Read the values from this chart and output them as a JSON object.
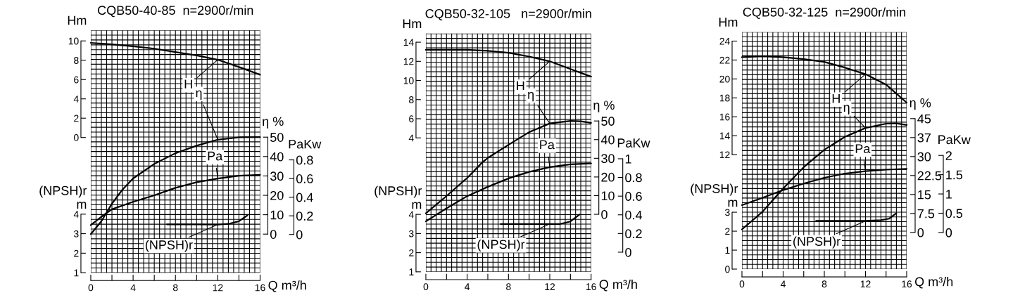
{
  "chart_data": [
    {
      "type": "line",
      "title": "CQB50-40-85  n=2900r/min",
      "ylabel": "Hm",
      "y2label": "η %",
      "y3label": "PaKw",
      "grid": true,
      "tick_labels": "y",
      "xlim": [
        0,
        16
      ],
      "ylim": [
        -14.0,
        11.1
      ],
      "yticks": [
        0,
        2,
        4,
        6,
        8,
        10
      ],
      "y2lim": [
        -19.9,
        105.1
      ],
      "y2ticks": [
        0,
        10,
        20,
        30,
        40,
        50
      ],
      "y3lim": [
        -0.41,
        2.19
      ],
      "y3ticks": [
        0,
        0.2,
        0.4,
        0.6,
        0.8
      ],
      "series": [
        {
          "name": "H",
          "color": "#000000",
          "x": [
            0,
            2,
            4,
            6,
            8,
            10,
            12,
            14,
            16
          ],
          "values": [
            9.8,
            9.65,
            9.45,
            9.2,
            8.85,
            8.5,
            8.05,
            7.3,
            6.5
          ]
        },
        {
          "name": "η",
          "axis": "y2",
          "color": "#000000",
          "x": [
            0,
            1,
            2,
            3,
            4,
            6,
            8,
            10,
            12,
            14,
            16
          ],
          "values": [
            0,
            6.6,
            15.7,
            23,
            28.7,
            36.2,
            41.7,
            45.6,
            48.7,
            49.9,
            50
          ]
        },
        {
          "name": "Pa",
          "axis": "y3",
          "color": "#000000",
          "x": [
            0,
            1,
            2,
            4,
            6,
            8,
            10,
            12,
            14,
            16
          ],
          "values": [
            0.1,
            0.19,
            0.27,
            0.35,
            0.42,
            0.5,
            0.56,
            0.6,
            0.63,
            0.64
          ]
        }
      ]
    },
    {
      "type": "line",
      "xlabel": "Q m³/h",
      "ylabel": "(NPSH)r\nm",
      "xlim": [
        0,
        16
      ],
      "xticks": [
        0,
        {
          "value": 2,
          "label": null
        },
        4,
        {
          "value": 6,
          "label": null
        },
        8,
        {
          "value": 10,
          "label": null
        },
        12,
        {
          "value": 14,
          "label": null
        },
        16
      ],
      "ylim": [
        1,
        4
      ],
      "yticks": [
        1,
        2,
        3,
        4
      ],
      "series": [
        {
          "name": "(NPSH)r",
          "color": "#000000",
          "x": [
            7.2,
            10,
            12,
            13,
            14,
            14.8
          ],
          "values": [
            3.48,
            3.48,
            3.47,
            3.5,
            3.64,
            3.94
          ]
        }
      ]
    },
    {
      "type": "line",
      "title": "CQB50-32-105   n=2900r/min",
      "ylabel": "Hm",
      "y2label": "η %",
      "y3label": "PaKw",
      "grid": true,
      "tick_labels": "y",
      "xlim": [
        0,
        16
      ],
      "ylim": [
        -10.0,
        14.9
      ],
      "yticks": [
        4,
        6,
        8,
        10,
        12,
        14
      ],
      "y2lim": [
        -30.8,
        96.8
      ],
      "y2ticks": [
        0,
        10,
        20,
        30,
        40,
        50
      ],
      "y3lim": [
        -0.21,
        2.34
      ],
      "y3ticks": [
        0,
        0.2,
        0.4,
        0.6,
        0.8,
        1
      ],
      "series": [
        {
          "name": "H",
          "color": "#000000",
          "x": [
            0,
            2,
            4,
            6,
            8,
            10,
            12,
            14,
            16
          ],
          "values": [
            13.2,
            13.2,
            13.2,
            13.1,
            12.9,
            12.5,
            12.0,
            11.2,
            10.4
          ]
        },
        {
          "name": "η",
          "axis": "y2",
          "color": "#000000",
          "x": [
            0,
            2,
            4,
            5.5,
            6,
            8,
            10,
            12,
            14,
            15,
            16
          ],
          "values": [
            0.5,
            9.8,
            19.5,
            28,
            30.2,
            37.2,
            44,
            48.7,
            50,
            49.8,
            49
          ]
        },
        {
          "name": "Pa",
          "axis": "y3",
          "color": "#000000",
          "x": [
            0,
            2,
            4,
            6,
            8,
            10,
            12,
            14,
            16
          ],
          "values": [
            0.33,
            0.47,
            0.6,
            0.7,
            0.79,
            0.86,
            0.91,
            0.94,
            0.95
          ]
        }
      ]
    },
    {
      "type": "line",
      "xlabel": "Q m³/h",
      "ylabel": "(NPSH)r\nm",
      "xlim": [
        0,
        16
      ],
      "xticks": [
        0,
        {
          "value": 2,
          "label": null
        },
        4,
        {
          "value": 6,
          "label": null
        },
        8,
        {
          "value": 10,
          "label": null
        },
        12,
        {
          "value": 14,
          "label": null
        },
        16
      ],
      "ylim": [
        1,
        4
      ],
      "yticks": [
        1,
        2,
        3,
        4
      ],
      "series": [
        {
          "name": "(NPSH)r",
          "color": "#000000",
          "x": [
            7.25,
            10,
            12,
            13,
            14,
            14.9
          ],
          "values": [
            3.5,
            3.5,
            3.5,
            3.5,
            3.63,
            4.0
          ]
        }
      ]
    },
    {
      "type": "line",
      "title": "CQB50-32-125  n=2900r/min",
      "ylabel": "Hm",
      "y2label": "η %",
      "y3label": "PaKw",
      "grid": true,
      "tick_labels": "y",
      "xlim": [
        0,
        16
      ],
      "ylim": [
        -0.1,
        24.95
      ],
      "yticks": [
        12,
        14,
        16,
        18,
        20,
        22,
        24
      ],
      "y2lim": [
        -14.5,
        79.2
      ],
      "y2ticks": [
        0,
        7.5,
        15,
        22.5,
        30,
        {
          "value": 37.5,
          "label": "37"
        },
        45
      ],
      "y3lim": [
        -0.95,
        5.2
      ],
      "y3ticks": [
        0,
        0.5,
        1,
        1.5,
        2
      ],
      "series": [
        {
          "name": "H",
          "color": "#000000",
          "x": [
            0,
            2,
            4,
            6,
            8,
            10,
            12,
            14,
            16
          ],
          "values": [
            22.3,
            22.4,
            22.3,
            22.1,
            21.8,
            21.2,
            20.5,
            19.4,
            17.5
          ]
        },
        {
          "name": "η",
          "axis": "y2",
          "color": "#000000",
          "x": [
            0,
            2,
            4,
            6,
            8,
            10,
            12,
            14,
            15,
            16
          ],
          "values": [
            1.2,
            8.2,
            17.4,
            25.8,
            32.7,
            37.8,
            41.3,
            43,
            43.1,
            42.5
          ]
        },
        {
          "name": "Pa",
          "axis": "y3",
          "color": "#000000",
          "x": [
            0,
            2,
            4,
            6,
            8,
            10,
            12,
            14,
            16
          ],
          "values": [
            0.71,
            0.9,
            1.1,
            1.27,
            1.42,
            1.53,
            1.59,
            1.63,
            1.65
          ]
        }
      ]
    },
    {
      "type": "line",
      "xlabel": "Q m³/h",
      "ylabel": "(NPSH)r\nm",
      "xlim": [
        0,
        16
      ],
      "xticks": [
        0,
        {
          "value": 2,
          "label": null
        },
        4,
        {
          "value": 6,
          "label": null
        },
        8,
        {
          "value": 10,
          "label": null
        },
        12,
        {
          "value": 14,
          "label": null
        },
        16
      ],
      "ylim": [
        0,
        3
      ],
      "yticks": [
        0,
        1,
        2,
        3
      ],
      "series": [
        {
          "name": "(NPSH)r",
          "color": "#000000",
          "x": [
            7.2,
            10,
            12,
            13.5,
            14.3,
            15
          ],
          "values": [
            2.54,
            2.54,
            2.54,
            2.58,
            2.66,
            2.95
          ]
        }
      ]
    }
  ]
}
